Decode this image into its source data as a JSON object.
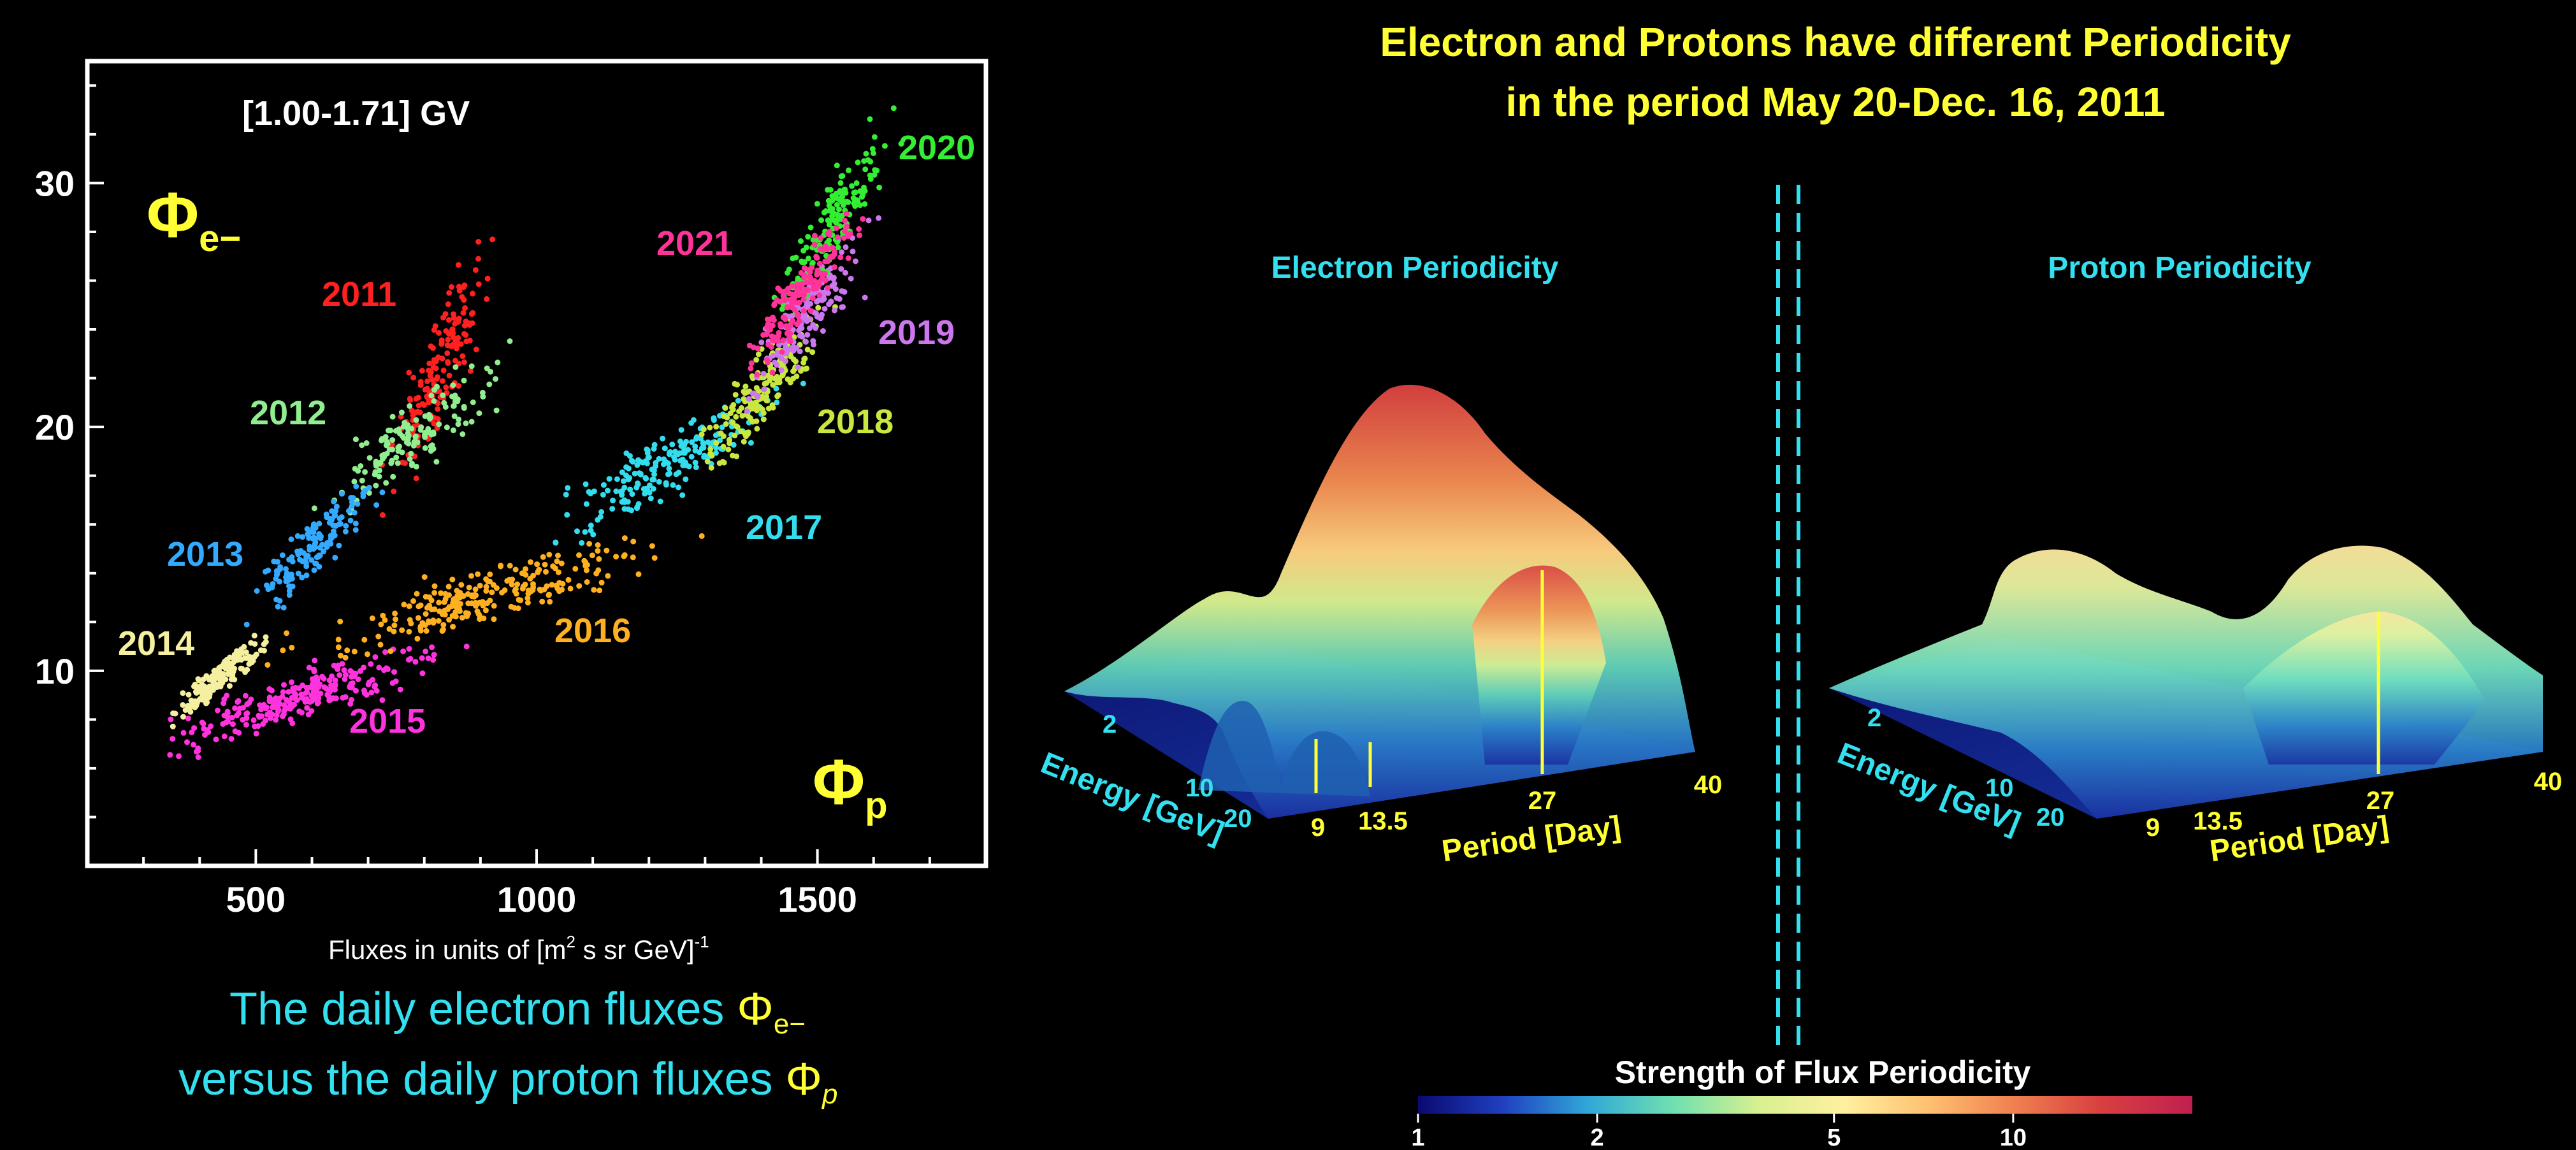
{
  "colors": {
    "background": "#000000",
    "white": "#ffffff",
    "yellow": "#ffff33",
    "cyan": "#33e0f0",
    "years": {
      "2011": "#ff2020",
      "2012": "#90ee90",
      "2013": "#33aaff",
      "2014": "#f5f0a0",
      "2015": "#ff33dd",
      "2016": "#ffb020",
      "2017": "#33ddee",
      "2018": "#c8e840",
      "2019": "#cc77ee",
      "2020": "#33ee33",
      "2021": "#ff3399"
    }
  },
  "left_panel": {
    "energy_range": "[1.00-1.71] GV",
    "y_symbol": "Φ",
    "y_subscript": "e−",
    "x_symbol": "Φ",
    "x_subscript": "p",
    "x_unit_prefix": "Fluxes in units of [m",
    "x_unit_sup": "2",
    "x_unit_mid": " s sr GeV]",
    "x_unit_sup2": "-1",
    "caption_line1_text": "The daily electron fluxes ",
    "caption_line1_symbol": "Φ",
    "caption_line1_sub": "e−",
    "caption_line2_text": "versus the daily proton fluxes ",
    "caption_line2_symbol": "Φ",
    "caption_line2_sub": "p"
  },
  "right_panel": {
    "title_line1": "Electron and Protons have different Periodicity",
    "title_line2": "in the period May 20-Dec. 16, 2011",
    "electron_title": "Electron Periodicity",
    "proton_title": "Proton Periodicity",
    "energy_axis_label": "Energy [GeV]",
    "period_axis_label": "Period [Day]",
    "energy_ticks": [
      "2",
      "10",
      "20"
    ],
    "period_ticks": [
      "9",
      "13.5",
      "27",
      "40"
    ],
    "colorbar_title": "Strength of Flux Periodicity",
    "colorbar_ticks": [
      "1",
      "2",
      "5",
      "10"
    ],
    "colorbar_tick_values": [
      1,
      2,
      5,
      10
    ],
    "colorbar_range": [
      1,
      20
    ],
    "colorbar_colors": [
      "#0a0a70",
      "#2040c0",
      "#30a8d8",
      "#70e0b0",
      "#d8f090",
      "#fff0a0",
      "#ffc070",
      "#f08050",
      "#d84040",
      "#c02050"
    ]
  },
  "chart_data": [
    {
      "type": "scatter",
      "title": "[1.00-1.71] GV",
      "xlabel": "Fluxes in units of [m2 s sr GeV]-1",
      "ylabel": "Φe−",
      "xlim": [
        200,
        1800
      ],
      "ylim": [
        2,
        35
      ],
      "xticks": [
        500,
        1000,
        1500
      ],
      "yticks": [
        10,
        20,
        30
      ],
      "grid": false,
      "series": [
        {
          "name": "2011",
          "center": [
            830,
            22.5
          ],
          "spread": [
            40,
            2.4
          ],
          "count": 160
        },
        {
          "name": "2012",
          "center": [
            780,
            19.5
          ],
          "spread": [
            70,
            1.5
          ],
          "count": 150
        },
        {
          "name": "2013",
          "center": [
            600,
            15.0
          ],
          "spread": [
            50,
            1.3
          ],
          "count": 140
        },
        {
          "name": "2014",
          "center": [
            440,
            9.8
          ],
          "spread": [
            35,
            0.8
          ],
          "count": 150
        },
        {
          "name": "2015",
          "center": [
            590,
            9.0
          ],
          "spread": [
            110,
            1.0
          ],
          "count": 260
        },
        {
          "name": "2016",
          "center": [
            900,
            13.0
          ],
          "spread": [
            140,
            1.2
          ],
          "count": 240
        },
        {
          "name": "2017",
          "center": [
            1230,
            18.5
          ],
          "spread": [
            90,
            1.5
          ],
          "count": 200
        },
        {
          "name": "2018",
          "center": [
            1400,
            21.5
          ],
          "spread": [
            50,
            1.6
          ],
          "count": 180
        },
        {
          "name": "2019",
          "center": [
            1480,
            24.5
          ],
          "spread": [
            45,
            1.6
          ],
          "count": 150
        },
        {
          "name": "2020",
          "center": [
            1530,
            28.5
          ],
          "spread": [
            40,
            1.7
          ],
          "count": 160
        },
        {
          "name": "2021",
          "center": [
            1470,
            25.5
          ],
          "spread": [
            45,
            1.6
          ],
          "count": 170
        }
      ]
    },
    {
      "type": "surface",
      "title": "Electron Periodicity",
      "xlabel": "Period [Day]",
      "ylabel": "Energy [GeV]",
      "xticks": [
        9,
        13.5,
        27,
        40
      ],
      "yticks": [
        2,
        10,
        20
      ],
      "marked_periods": [
        9,
        13.5,
        27
      ]
    },
    {
      "type": "surface",
      "title": "Proton Periodicity",
      "xlabel": "Period [Day]",
      "ylabel": "Energy [GeV]",
      "xticks": [
        9,
        13.5,
        27,
        40
      ],
      "yticks": [
        2,
        10,
        20
      ],
      "marked_periods": [
        27
      ]
    }
  ]
}
